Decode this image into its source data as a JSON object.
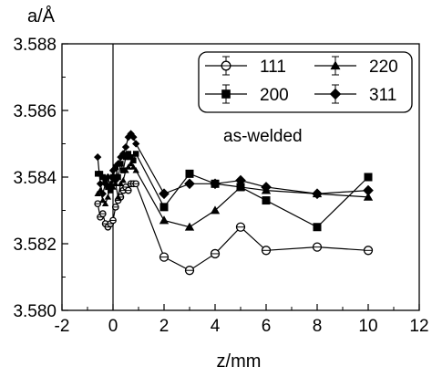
{
  "chart_data": {
    "type": "line",
    "ylabel": "a/Å",
    "xlabel": "z/mm",
    "annotation": "as-welded",
    "xlim": [
      -2,
      12
    ],
    "ylim": [
      3.58,
      3.588
    ],
    "xticks": [
      -2,
      0,
      2,
      4,
      6,
      8,
      10,
      12
    ],
    "xtick_labels": [
      "-2",
      "0",
      "2",
      "4",
      "6",
      "8",
      "10",
      "12"
    ],
    "yticks": [
      3.58,
      3.582,
      3.584,
      3.586,
      3.588
    ],
    "ytick_labels": [
      "3.580",
      "3.582",
      "3.584",
      "3.586",
      "3.588"
    ],
    "vertical_line_x": 0,
    "grid": false,
    "legend_position": "top-right",
    "series": [
      {
        "name": "111",
        "marker": "circle",
        "x": [
          -0.6,
          -0.5,
          -0.4,
          -0.3,
          -0.2,
          -0.1,
          0.0,
          0.1,
          0.2,
          0.3,
          0.4,
          0.5,
          0.6,
          0.7,
          0.8,
          0.9,
          2,
          3,
          4,
          5,
          6,
          8,
          10
        ],
        "y": [
          3.5832,
          3.5828,
          3.5829,
          3.5826,
          3.5825,
          3.5826,
          3.5827,
          3.5831,
          3.5833,
          3.5834,
          3.5836,
          3.5837,
          3.5836,
          3.5838,
          3.5838,
          3.5838,
          3.5816,
          3.5812,
          3.5817,
          3.5825,
          3.5818,
          3.5819,
          3.5818
        ]
      },
      {
        "name": "200",
        "marker": "square",
        "x": [
          -0.6,
          -0.5,
          -0.4,
          -0.3,
          -0.2,
          -0.1,
          0.0,
          0.1,
          0.2,
          0.3,
          0.4,
          0.5,
          0.6,
          0.7,
          0.8,
          0.9,
          2,
          3,
          4,
          5,
          6,
          8,
          10
        ],
        "y": [
          3.5841,
          3.5841,
          3.584,
          3.5839,
          3.5837,
          3.5836,
          3.584,
          3.5843,
          3.584,
          3.5844,
          3.5842,
          3.5846,
          3.5847,
          3.5846,
          3.5845,
          3.5847,
          3.5831,
          3.5841,
          3.5838,
          3.5837,
          3.5833,
          3.5825,
          3.584
        ]
      },
      {
        "name": "220",
        "marker": "triangle",
        "x": [
          -0.6,
          -0.5,
          -0.4,
          -0.3,
          -0.2,
          -0.1,
          0.0,
          0.1,
          0.2,
          0.3,
          0.4,
          0.5,
          0.6,
          0.7,
          0.8,
          0.9,
          2,
          3,
          4,
          5,
          6,
          8,
          10
        ],
        "y": [
          3.5835,
          3.5836,
          3.5833,
          3.5832,
          3.5834,
          3.5838,
          3.5837,
          3.5838,
          3.5834,
          3.5838,
          3.5839,
          3.5842,
          3.5843,
          3.5844,
          3.5843,
          3.5842,
          3.5827,
          3.5825,
          3.583,
          3.5837,
          3.5836,
          3.5835,
          3.5834
        ]
      },
      {
        "name": "311",
        "marker": "diamond",
        "x": [
          -0.6,
          -0.5,
          -0.4,
          -0.3,
          -0.2,
          -0.1,
          0.0,
          0.1,
          0.2,
          0.3,
          0.4,
          0.5,
          0.6,
          0.7,
          0.8,
          0.9,
          2,
          3,
          4,
          5,
          6,
          8,
          10
        ],
        "y": [
          3.5846,
          3.5838,
          3.5835,
          3.5838,
          3.584,
          3.5837,
          3.5842,
          3.5839,
          3.5844,
          3.5846,
          3.5847,
          3.5849,
          3.5852,
          3.5853,
          3.5852,
          3.585,
          3.5835,
          3.5838,
          3.5838,
          3.5839,
          3.5837,
          3.5835,
          3.5836
        ]
      }
    ]
  }
}
